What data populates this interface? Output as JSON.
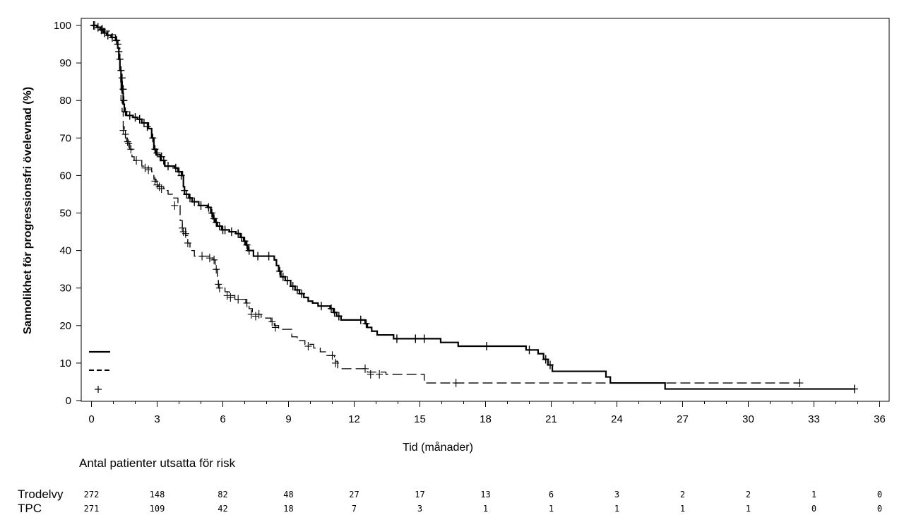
{
  "chart_data": {
    "type": "line",
    "subtype": "kaplan-meier",
    "title": "",
    "xlabel": "Tid (månader)",
    "ylabel": "Sannolikhet för progressionsfri övelevnad (%)",
    "xlim": [
      0,
      36
    ],
    "ylim": [
      0,
      100
    ],
    "x_ticks": [
      0,
      3,
      6,
      9,
      12,
      15,
      18,
      21,
      24,
      27,
      30,
      33,
      36
    ],
    "y_ticks": [
      0,
      10,
      20,
      30,
      40,
      50,
      60,
      70,
      80,
      90,
      100
    ],
    "legend": {
      "placement": "bottom-left",
      "entries": [
        {
          "style": "solid",
          "label": ""
        },
        {
          "style": "dashed",
          "label": ""
        },
        {
          "style": "censor",
          "label": ""
        }
      ]
    },
    "series": [
      {
        "name": "Trodelvy",
        "style": "solid",
        "steps": [
          [
            0,
            100
          ],
          [
            0.25,
            99.5
          ],
          [
            0.4,
            98.8
          ],
          [
            0.55,
            98
          ],
          [
            0.7,
            97.4
          ],
          [
            0.9,
            96.8
          ],
          [
            1.1,
            96
          ],
          [
            1.2,
            94
          ],
          [
            1.25,
            91
          ],
          [
            1.3,
            88
          ],
          [
            1.35,
            85
          ],
          [
            1.4,
            82
          ],
          [
            1.45,
            79
          ],
          [
            1.5,
            77
          ],
          [
            1.6,
            76
          ],
          [
            1.9,
            75.5
          ],
          [
            2.1,
            75
          ],
          [
            2.3,
            74
          ],
          [
            2.6,
            72.5
          ],
          [
            2.75,
            70
          ],
          [
            2.85,
            67
          ],
          [
            2.95,
            65.5
          ],
          [
            3.15,
            64
          ],
          [
            3.35,
            62.5
          ],
          [
            3.8,
            62
          ],
          [
            3.95,
            61
          ],
          [
            4.15,
            60
          ],
          [
            4.2,
            57
          ],
          [
            4.25,
            55
          ],
          [
            4.45,
            54
          ],
          [
            4.6,
            53
          ],
          [
            4.9,
            52
          ],
          [
            5.3,
            51.5
          ],
          [
            5.45,
            50
          ],
          [
            5.55,
            48.5
          ],
          [
            5.65,
            47.5
          ],
          [
            5.75,
            46.5
          ],
          [
            5.95,
            45.5
          ],
          [
            6.3,
            45
          ],
          [
            6.6,
            44.5
          ],
          [
            6.8,
            43.5
          ],
          [
            6.95,
            42.5
          ],
          [
            7.05,
            41.5
          ],
          [
            7.15,
            40
          ],
          [
            7.4,
            38.5
          ],
          [
            8.35,
            37.5
          ],
          [
            8.45,
            36
          ],
          [
            8.55,
            34.5
          ],
          [
            8.65,
            33
          ],
          [
            8.85,
            32
          ],
          [
            9.1,
            30.5
          ],
          [
            9.3,
            29.5
          ],
          [
            9.5,
            28.5
          ],
          [
            9.7,
            27.5
          ],
          [
            9.9,
            26.5
          ],
          [
            10.1,
            26
          ],
          [
            10.35,
            25.2
          ],
          [
            10.9,
            24.5
          ],
          [
            11.05,
            23.5
          ],
          [
            11.2,
            22.5
          ],
          [
            11.4,
            21.5
          ],
          [
            12.5,
            20.5
          ],
          [
            12.6,
            19.5
          ],
          [
            12.8,
            18.5
          ],
          [
            13.05,
            17.5
          ],
          [
            13.8,
            16.5
          ],
          [
            15.95,
            15.5
          ],
          [
            16.75,
            14.5
          ],
          [
            19.85,
            13.5
          ],
          [
            20.4,
            12.5
          ],
          [
            20.65,
            11
          ],
          [
            20.85,
            9.5
          ],
          [
            21.05,
            7.8
          ],
          [
            23.5,
            6.3
          ],
          [
            23.7,
            4.7
          ],
          [
            26.2,
            3.1
          ],
          [
            34.85,
            3.1
          ]
        ],
        "censors": [
          [
            0.1,
            100
          ],
          [
            0.3,
            99.5
          ],
          [
            0.45,
            98.8
          ],
          [
            0.6,
            98
          ],
          [
            0.75,
            97.4
          ],
          [
            0.95,
            96.8
          ],
          [
            1.15,
            96
          ],
          [
            1.2,
            95
          ],
          [
            1.25,
            93
          ],
          [
            1.3,
            91
          ],
          [
            1.35,
            88
          ],
          [
            1.4,
            86
          ],
          [
            1.45,
            83
          ],
          [
            1.48,
            80
          ],
          [
            1.55,
            77
          ],
          [
            1.75,
            76
          ],
          [
            2,
            75.5
          ],
          [
            2.2,
            75
          ],
          [
            2.4,
            74
          ],
          [
            2.55,
            73
          ],
          [
            2.8,
            70
          ],
          [
            2.9,
            67
          ],
          [
            3,
            66
          ],
          [
            3.2,
            65
          ],
          [
            3.3,
            64
          ],
          [
            3.5,
            62.5
          ],
          [
            3.85,
            62
          ],
          [
            4,
            61
          ],
          [
            4.1,
            60
          ],
          [
            4.25,
            56
          ],
          [
            4.35,
            55
          ],
          [
            4.5,
            54
          ],
          [
            4.7,
            53
          ],
          [
            5,
            52
          ],
          [
            5.35,
            51.5
          ],
          [
            5.5,
            50
          ],
          [
            5.6,
            48.5
          ],
          [
            5.7,
            47.5
          ],
          [
            5.85,
            46.5
          ],
          [
            6,
            45.5
          ],
          [
            6.1,
            45.5
          ],
          [
            6.4,
            45
          ],
          [
            6.7,
            44.5
          ],
          [
            6.85,
            43.5
          ],
          [
            7,
            42.5
          ],
          [
            7.1,
            41.5
          ],
          [
            7.2,
            40
          ],
          [
            7.6,
            38.5
          ],
          [
            8.1,
            38.5
          ],
          [
            8.6,
            34.5
          ],
          [
            8.75,
            33
          ],
          [
            8.95,
            32
          ],
          [
            9.2,
            30.5
          ],
          [
            9.4,
            29.5
          ],
          [
            9.6,
            28.5
          ],
          [
            10.5,
            25.2
          ],
          [
            10.95,
            24.5
          ],
          [
            11.1,
            23.5
          ],
          [
            11.3,
            22.5
          ],
          [
            12.3,
            21.5
          ],
          [
            12.55,
            20.5
          ],
          [
            13.95,
            16.5
          ],
          [
            14.8,
            16.5
          ],
          [
            15.2,
            16.5
          ],
          [
            18.05,
            14.5
          ],
          [
            20,
            13.5
          ],
          [
            20.75,
            11
          ],
          [
            20.95,
            9.5
          ],
          [
            34.85,
            3.1
          ]
        ]
      },
      {
        "name": "TPC",
        "style": "dashed",
        "steps": [
          [
            0,
            100
          ],
          [
            0.3,
            99.2
          ],
          [
            0.6,
            98.5
          ],
          [
            0.9,
            97.5
          ],
          [
            1.1,
            96
          ],
          [
            1.2,
            94
          ],
          [
            1.3,
            88
          ],
          [
            1.35,
            80
          ],
          [
            1.4,
            77
          ],
          [
            1.45,
            73
          ],
          [
            1.5,
            71
          ],
          [
            1.55,
            70
          ],
          [
            1.6,
            69
          ],
          [
            1.75,
            67
          ],
          [
            1.85,
            65
          ],
          [
            1.95,
            64
          ],
          [
            2.3,
            62.5
          ],
          [
            2.55,
            62
          ],
          [
            2.75,
            61
          ],
          [
            2.85,
            59
          ],
          [
            2.95,
            58
          ],
          [
            3.05,
            57
          ],
          [
            3.3,
            56
          ],
          [
            3.5,
            55
          ],
          [
            3.7,
            54
          ],
          [
            3.95,
            52
          ],
          [
            4.05,
            48
          ],
          [
            4.15,
            46
          ],
          [
            4.3,
            44
          ],
          [
            4.4,
            42
          ],
          [
            4.5,
            40
          ],
          [
            4.7,
            38.5
          ],
          [
            5.55,
            37.5
          ],
          [
            5.65,
            35
          ],
          [
            5.75,
            32
          ],
          [
            5.8,
            30
          ],
          [
            6.1,
            29
          ],
          [
            6.3,
            28
          ],
          [
            6.55,
            27
          ],
          [
            7.05,
            26
          ],
          [
            7.2,
            24.5
          ],
          [
            7.35,
            23
          ],
          [
            7.75,
            22
          ],
          [
            8.2,
            21
          ],
          [
            8.35,
            20
          ],
          [
            8.55,
            19
          ],
          [
            9.15,
            17
          ],
          [
            9.4,
            16
          ],
          [
            9.75,
            15
          ],
          [
            10.15,
            14
          ],
          [
            10.45,
            13
          ],
          [
            10.75,
            12
          ],
          [
            11.1,
            10.5
          ],
          [
            11.25,
            8.5
          ],
          [
            12.25,
            8.5
          ],
          [
            12.6,
            7.6
          ],
          [
            13.45,
            7
          ],
          [
            15.2,
            4.7
          ],
          [
            32.35,
            4.7
          ]
        ],
        "censors": [
          [
            0.15,
            100
          ],
          [
            0.5,
            99
          ],
          [
            1.15,
            96
          ],
          [
            1.25,
            93
          ],
          [
            1.45,
            72
          ],
          [
            1.55,
            71
          ],
          [
            1.65,
            69
          ],
          [
            1.7,
            68.5
          ],
          [
            1.8,
            67
          ],
          [
            2.05,
            64
          ],
          [
            2.45,
            62
          ],
          [
            2.6,
            61.5
          ],
          [
            2.9,
            58.5
          ],
          [
            3,
            57.5
          ],
          [
            3.1,
            57
          ],
          [
            3.2,
            56.5
          ],
          [
            3.8,
            52
          ],
          [
            4.15,
            46
          ],
          [
            4.2,
            45
          ],
          [
            4.3,
            44.5
          ],
          [
            4.4,
            42
          ],
          [
            5.05,
            38.5
          ],
          [
            5.4,
            38
          ],
          [
            5.6,
            37.5
          ],
          [
            5.7,
            35
          ],
          [
            5.8,
            31
          ],
          [
            5.85,
            30
          ],
          [
            6.2,
            28
          ],
          [
            6.35,
            27.5
          ],
          [
            6.7,
            27
          ],
          [
            7.1,
            26
          ],
          [
            7.3,
            23
          ],
          [
            7.5,
            22.5
          ],
          [
            7.65,
            23
          ],
          [
            8.25,
            21
          ],
          [
            8.4,
            19.5
          ],
          [
            9.9,
            14.5
          ],
          [
            11,
            12
          ],
          [
            11.15,
            10
          ],
          [
            12.5,
            8.5
          ],
          [
            12.75,
            7
          ],
          [
            13.15,
            7
          ],
          [
            16.65,
            4.7
          ],
          [
            32.35,
            4.7
          ]
        ]
      }
    ],
    "risk_table": {
      "title": "Antal patienter utsatta för risk",
      "timepoints": [
        0,
        3,
        6,
        9,
        12,
        15,
        18,
        21,
        24,
        27,
        30,
        33,
        36
      ],
      "rows": [
        {
          "label": "Trodelvy",
          "values": [
            272,
            148,
            82,
            48,
            27,
            17,
            13,
            6,
            3,
            2,
            2,
            1,
            0
          ]
        },
        {
          "label": "TPC",
          "values": [
            271,
            109,
            42,
            18,
            7,
            3,
            1,
            1,
            1,
            1,
            1,
            0,
            0
          ]
        }
      ]
    }
  }
}
